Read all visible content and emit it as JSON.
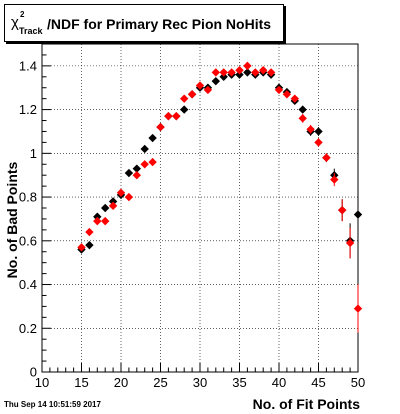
{
  "footer": {
    "timestamp": "Thu Sep 14 10:51:59 2017"
  },
  "chart_data": {
    "type": "scatter",
    "title_chi": "χ",
    "title_sup": "2",
    "title_sub": "Track",
    "title": "/NDF for Primary Rec Pion NoHits",
    "xlabel": "No. of Fit Points",
    "ylabel": "No. of Bad Points",
    "xlim": [
      10,
      50
    ],
    "ylim": [
      0,
      1.5
    ],
    "xticks": [
      10,
      15,
      20,
      25,
      30,
      35,
      40,
      45,
      50
    ],
    "yticks": [
      0,
      0.2,
      0.4,
      0.6,
      0.8,
      1,
      1.2,
      1.4
    ],
    "grid": true,
    "series": [
      {
        "color": "#000000",
        "points": [
          {
            "x": 15,
            "y": 0.56,
            "err": 0.01
          },
          {
            "x": 16,
            "y": 0.58,
            "err": 0.01
          },
          {
            "x": 17,
            "y": 0.71,
            "err": 0.01
          },
          {
            "x": 18,
            "y": 0.75,
            "err": 0.01
          },
          {
            "x": 19,
            "y": 0.78,
            "err": 0.01
          },
          {
            "x": 20,
            "y": 0.81,
            "err": 0.01
          },
          {
            "x": 21,
            "y": 0.91,
            "err": 0.01
          },
          {
            "x": 22,
            "y": 0.93,
            "err": 0.01
          },
          {
            "x": 23,
            "y": 1.02,
            "err": 0.01
          },
          {
            "x": 24,
            "y": 1.07,
            "err": 0.01
          },
          {
            "x": 25,
            "y": 1.12,
            "err": 0.01
          },
          {
            "x": 26,
            "y": 1.17,
            "err": 0.01
          },
          {
            "x": 27,
            "y": 1.17,
            "err": 0.01
          },
          {
            "x": 28,
            "y": 1.2,
            "err": 0.01
          },
          {
            "x": 29,
            "y": 1.27,
            "err": 0.01
          },
          {
            "x": 30,
            "y": 1.3,
            "err": 0.01
          },
          {
            "x": 31,
            "y": 1.3,
            "err": 0.01
          },
          {
            "x": 32,
            "y": 1.33,
            "err": 0.01
          },
          {
            "x": 33,
            "y": 1.35,
            "err": 0.01
          },
          {
            "x": 34,
            "y": 1.36,
            "err": 0.01
          },
          {
            "x": 35,
            "y": 1.36,
            "err": 0.01
          },
          {
            "x": 36,
            "y": 1.37,
            "err": 0.01
          },
          {
            "x": 37,
            "y": 1.36,
            "err": 0.01
          },
          {
            "x": 38,
            "y": 1.37,
            "err": 0.01
          },
          {
            "x": 39,
            "y": 1.36,
            "err": 0.01
          },
          {
            "x": 40,
            "y": 1.3,
            "err": 0.01
          },
          {
            "x": 41,
            "y": 1.28,
            "err": 0.01
          },
          {
            "x": 42,
            "y": 1.24,
            "err": 0.01
          },
          {
            "x": 43,
            "y": 1.2,
            "err": 0.01
          },
          {
            "x": 44,
            "y": 1.1,
            "err": 0.02
          },
          {
            "x": 45,
            "y": 1.1,
            "err": 0.02
          },
          {
            "x": 46,
            "y": 0.98,
            "err": 0.02
          },
          {
            "x": 47,
            "y": 0.9,
            "err": 0.03
          },
          {
            "x": 48,
            "y": 0.74,
            "err": 0.05
          },
          {
            "x": 49,
            "y": 0.6,
            "err": 0.08
          },
          {
            "x": 50,
            "y": 0.72,
            "err": 0.28
          }
        ]
      },
      {
        "color": "#ff0000",
        "points": [
          {
            "x": 15,
            "y": 0.57,
            "err": 0.01
          },
          {
            "x": 16,
            "y": 0.64,
            "err": 0.01
          },
          {
            "x": 17,
            "y": 0.69,
            "err": 0.01
          },
          {
            "x": 18,
            "y": 0.69,
            "err": 0.01
          },
          {
            "x": 19,
            "y": 0.76,
            "err": 0.01
          },
          {
            "x": 20,
            "y": 0.82,
            "err": 0.01
          },
          {
            "x": 21,
            "y": 0.8,
            "err": 0.01
          },
          {
            "x": 22,
            "y": 0.9,
            "err": 0.01
          },
          {
            "x": 23,
            "y": 0.95,
            "err": 0.01
          },
          {
            "x": 24,
            "y": 0.96,
            "err": 0.01
          },
          {
            "x": 25,
            "y": 1.12,
            "err": 0.01
          },
          {
            "x": 26,
            "y": 1.17,
            "err": 0.01
          },
          {
            "x": 27,
            "y": 1.17,
            "err": 0.01
          },
          {
            "x": 28,
            "y": 1.25,
            "err": 0.01
          },
          {
            "x": 29,
            "y": 1.27,
            "err": 0.01
          },
          {
            "x": 30,
            "y": 1.31,
            "err": 0.01
          },
          {
            "x": 31,
            "y": 1.29,
            "err": 0.01
          },
          {
            "x": 32,
            "y": 1.37,
            "err": 0.01
          },
          {
            "x": 33,
            "y": 1.37,
            "err": 0.01
          },
          {
            "x": 34,
            "y": 1.37,
            "err": 0.01
          },
          {
            "x": 35,
            "y": 1.38,
            "err": 0.01
          },
          {
            "x": 36,
            "y": 1.4,
            "err": 0.01
          },
          {
            "x": 37,
            "y": 1.37,
            "err": 0.01
          },
          {
            "x": 38,
            "y": 1.38,
            "err": 0.01
          },
          {
            "x": 39,
            "y": 1.37,
            "err": 0.01
          },
          {
            "x": 40,
            "y": 1.29,
            "err": 0.01
          },
          {
            "x": 41,
            "y": 1.27,
            "err": 0.01
          },
          {
            "x": 42,
            "y": 1.25,
            "err": 0.01
          },
          {
            "x": 43,
            "y": 1.16,
            "err": 0.02
          },
          {
            "x": 44,
            "y": 1.11,
            "err": 0.02
          },
          {
            "x": 45,
            "y": 1.05,
            "err": 0.02
          },
          {
            "x": 46,
            "y": 0.98,
            "err": 0.02
          },
          {
            "x": 47,
            "y": 0.88,
            "err": 0.03
          },
          {
            "x": 48,
            "y": 0.74,
            "err": 0.05
          },
          {
            "x": 49,
            "y": 0.59,
            "err": 0.07
          },
          {
            "x": 50,
            "y": 0.29,
            "err": 0.11
          }
        ]
      }
    ]
  }
}
